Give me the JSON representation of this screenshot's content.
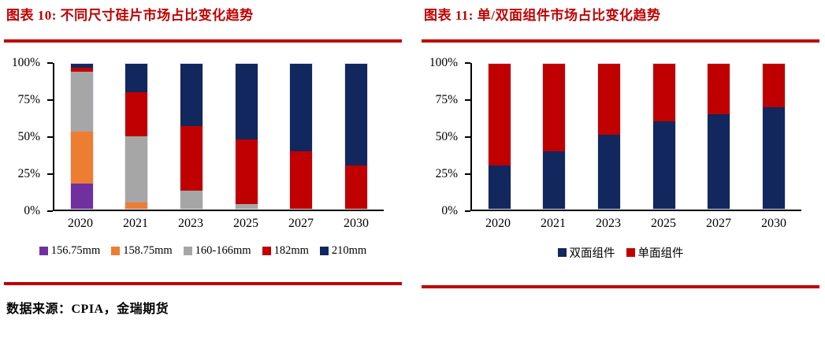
{
  "colors": {
    "accent_red": "#C00000",
    "rule_red": "#C00000",
    "axis_black": "#000000"
  },
  "footer": {
    "source": "数据来源：CPIA，金瑞期货"
  },
  "chart_data": [
    {
      "type": "bar",
      "stacked": true,
      "title": "图表 10: 不同尺寸硅片市场占比变化趋势",
      "categories": [
        "2020",
        "2021",
        "2023",
        "2025",
        "2027",
        "2030"
      ],
      "series": [
        {
          "name": "156.75mm",
          "color": "#7030A0",
          "values": [
            18,
            0,
            0,
            0,
            0,
            0
          ]
        },
        {
          "name": "158.75mm",
          "color": "#ED7D31",
          "values": [
            35,
            5,
            0,
            0,
            0,
            0
          ]
        },
        {
          "name": "160-166mm",
          "color": "#A6A6A6",
          "values": [
            41,
            45,
            13,
            4,
            0,
            0
          ]
        },
        {
          "name": "182mm",
          "color": "#C00000",
          "values": [
            3,
            30,
            44,
            44,
            40,
            30
          ]
        },
        {
          "name": "210mm",
          "color": "#12275E",
          "values": [
            3,
            20,
            43,
            52,
            60,
            70
          ]
        }
      ],
      "xlabel": "",
      "ylabel": "",
      "ylim": [
        0,
        100
      ],
      "yticks": [
        "0%",
        "25%",
        "50%",
        "75%",
        "100%"
      ],
      "grid": false,
      "legend_position": "bottom"
    },
    {
      "type": "bar",
      "stacked": true,
      "title": "图表 11: 单/双面组件市场占比变化趋势",
      "categories": [
        "2020",
        "2021",
        "2023",
        "2025",
        "2027",
        "2030"
      ],
      "series": [
        {
          "name": "双面组件",
          "color": "#12275E",
          "values": [
            30,
            40,
            51,
            60,
            65,
            70
          ]
        },
        {
          "name": "单面组件",
          "color": "#C00000",
          "values": [
            70,
            60,
            49,
            40,
            35,
            30
          ]
        }
      ],
      "xlabel": "",
      "ylabel": "",
      "ylim": [
        0,
        100
      ],
      "yticks": [
        "0%",
        "25%",
        "50%",
        "75%",
        "100%"
      ],
      "grid": false,
      "legend_position": "bottom"
    }
  ]
}
